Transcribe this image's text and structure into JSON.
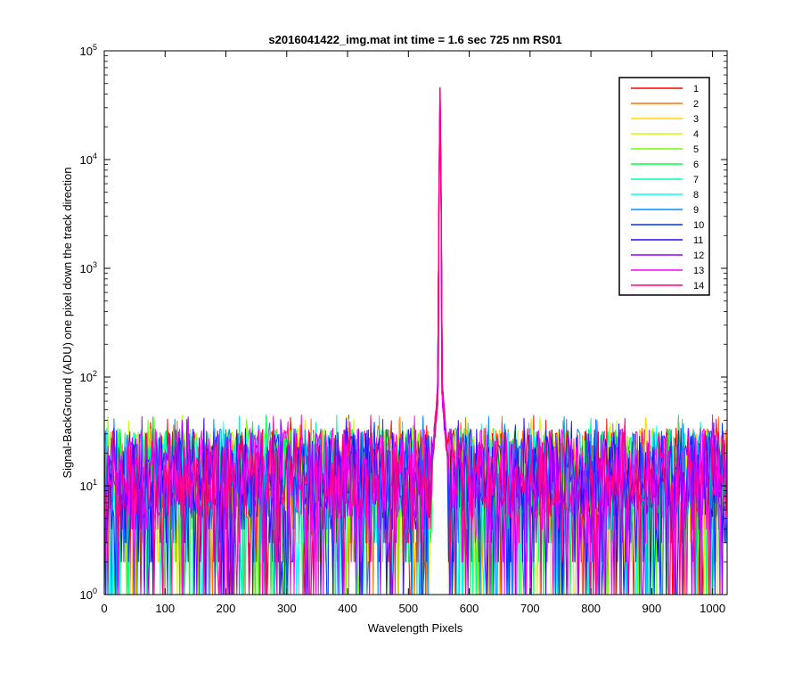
{
  "chart_data": {
    "type": "line",
    "title": "s2016041422_img.mat int time = 1.6 sec  725 nm RS01",
    "xlabel": "Wavelength Pixels",
    "ylabel": "Signal-BackGround (ADU) one pixel down the track direction",
    "x_scale": "linear",
    "y_scale": "log",
    "xlim": [
      0,
      1024
    ],
    "ylim": [
      1,
      100000
    ],
    "grid": false,
    "legend_position": "top-right",
    "x_ticks": [
      0,
      100,
      200,
      300,
      400,
      500,
      600,
      700,
      800,
      900,
      1000
    ],
    "y_ticks": [
      {
        "value": 1,
        "base": "10",
        "exp": "0"
      },
      {
        "value": 10,
        "base": "10",
        "exp": "1"
      },
      {
        "value": 100,
        "base": "10",
        "exp": "2"
      },
      {
        "value": 1000,
        "base": "10",
        "exp": "3"
      },
      {
        "value": 10000,
        "base": "10",
        "exp": "4"
      },
      {
        "value": 100000,
        "base": "10",
        "exp": "5"
      }
    ],
    "peak": {
      "x": 552,
      "y": 42000,
      "shoulder_y": 90
    },
    "noise_level_approx": {
      "median": 10,
      "max": 45,
      "min": 1
    },
    "series": [
      {
        "name": "1",
        "color": "#ff0000"
      },
      {
        "name": "2",
        "color": "#ff7000"
      },
      {
        "name": "3",
        "color": "#ffd700"
      },
      {
        "name": "4",
        "color": "#c8ff00"
      },
      {
        "name": "5",
        "color": "#70ff00"
      },
      {
        "name": "6",
        "color": "#00ff40"
      },
      {
        "name": "7",
        "color": "#00ffa0"
      },
      {
        "name": "8",
        "color": "#00ffff"
      },
      {
        "name": "9",
        "color": "#0090ff"
      },
      {
        "name": "10",
        "color": "#0030ff"
      },
      {
        "name": "11",
        "color": "#3000ff"
      },
      {
        "name": "12",
        "color": "#9000ff"
      },
      {
        "name": "13",
        "color": "#ff00ff"
      },
      {
        "name": "14",
        "color": "#ff0080"
      }
    ]
  }
}
